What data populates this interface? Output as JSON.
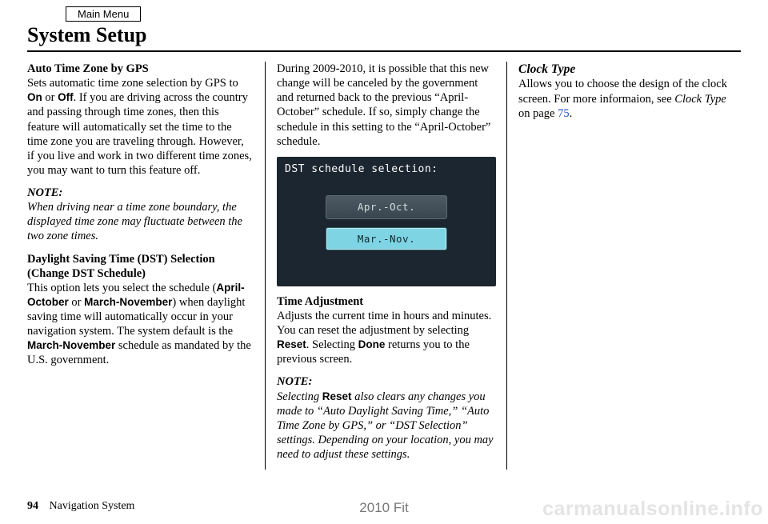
{
  "header": {
    "main_menu": "Main Menu",
    "page_title": "System Setup"
  },
  "col1": {
    "auto_tz_head": "Auto Time Zone by GPS",
    "auto_tz_p1a": "Sets automatic time zone selection by GPS to ",
    "on": "On",
    "or": " or ",
    "off": "Off",
    "auto_tz_p1b": ". If you are driving across the country and passing through time zones, then this feature will automatically set the time to the time zone you are traveling through. However, if you live and work in two different time zones, you may want to turn this feature off.",
    "note_label": "NOTE:",
    "note1": "When driving near a time zone boundary, the displayed time zone may fluctuate between the two zone times.",
    "dst_head": "Daylight Saving Time (DST) Selection (Change DST Schedule)",
    "dst_p_a": "This option lets you select the schedule (",
    "apr_oct": "April-October",
    "dst_or": " or ",
    "mar_nov": "March-November",
    "dst_p_b": ") when daylight saving time will automatically occur in your navigation system. The system default is the ",
    "mar_nov2": "March-November",
    "dst_p_c": " schedule as mandated by the U.S. government."
  },
  "col2": {
    "intro": "During 2009-2010, it is possible that this new change will be canceled by the government and returned back to the previous “April-October” schedule. If so, simply change the schedule in this setting to the “April-October” schedule.",
    "panel": {
      "title": "DST schedule selection:",
      "opt1": "Apr.-Oct.",
      "opt2": "Mar.-Nov.",
      "bg": "#1b2630",
      "active_bg": "#7fd4e3",
      "inactive_bg": "#434f58",
      "text_light": "#ffffff"
    },
    "time_adj_head": "Time Adjustment",
    "time_adj_a": "Adjusts the current time in hours and minutes. You can reset the adjustment by selecting ",
    "reset": "Reset",
    "time_adj_b": ". Selecting ",
    "done": "Done",
    "time_adj_c": " returns you to the previous screen.",
    "note_label": "NOTE:",
    "note2a": "Selecting ",
    "note2_reset": "Reset",
    "note2b": " also clears any changes you made to “Auto Daylight Saving Time,” “Auto Time Zone by GPS,” or “DST Selection” settings. Depending on your location, you may need to adjust these settings."
  },
  "col3": {
    "clock_head": "Clock Type",
    "clock_a": "Allows you to choose the design of the clock screen. For more informaion, see ",
    "clock_ref": "Clock Type",
    "clock_b": " on page ",
    "page_link": "75",
    "clock_c": "."
  },
  "footer": {
    "page_num": "94",
    "section": "Navigation System",
    "center": "2010 Fit",
    "watermark": "carmanualsonline.info"
  }
}
